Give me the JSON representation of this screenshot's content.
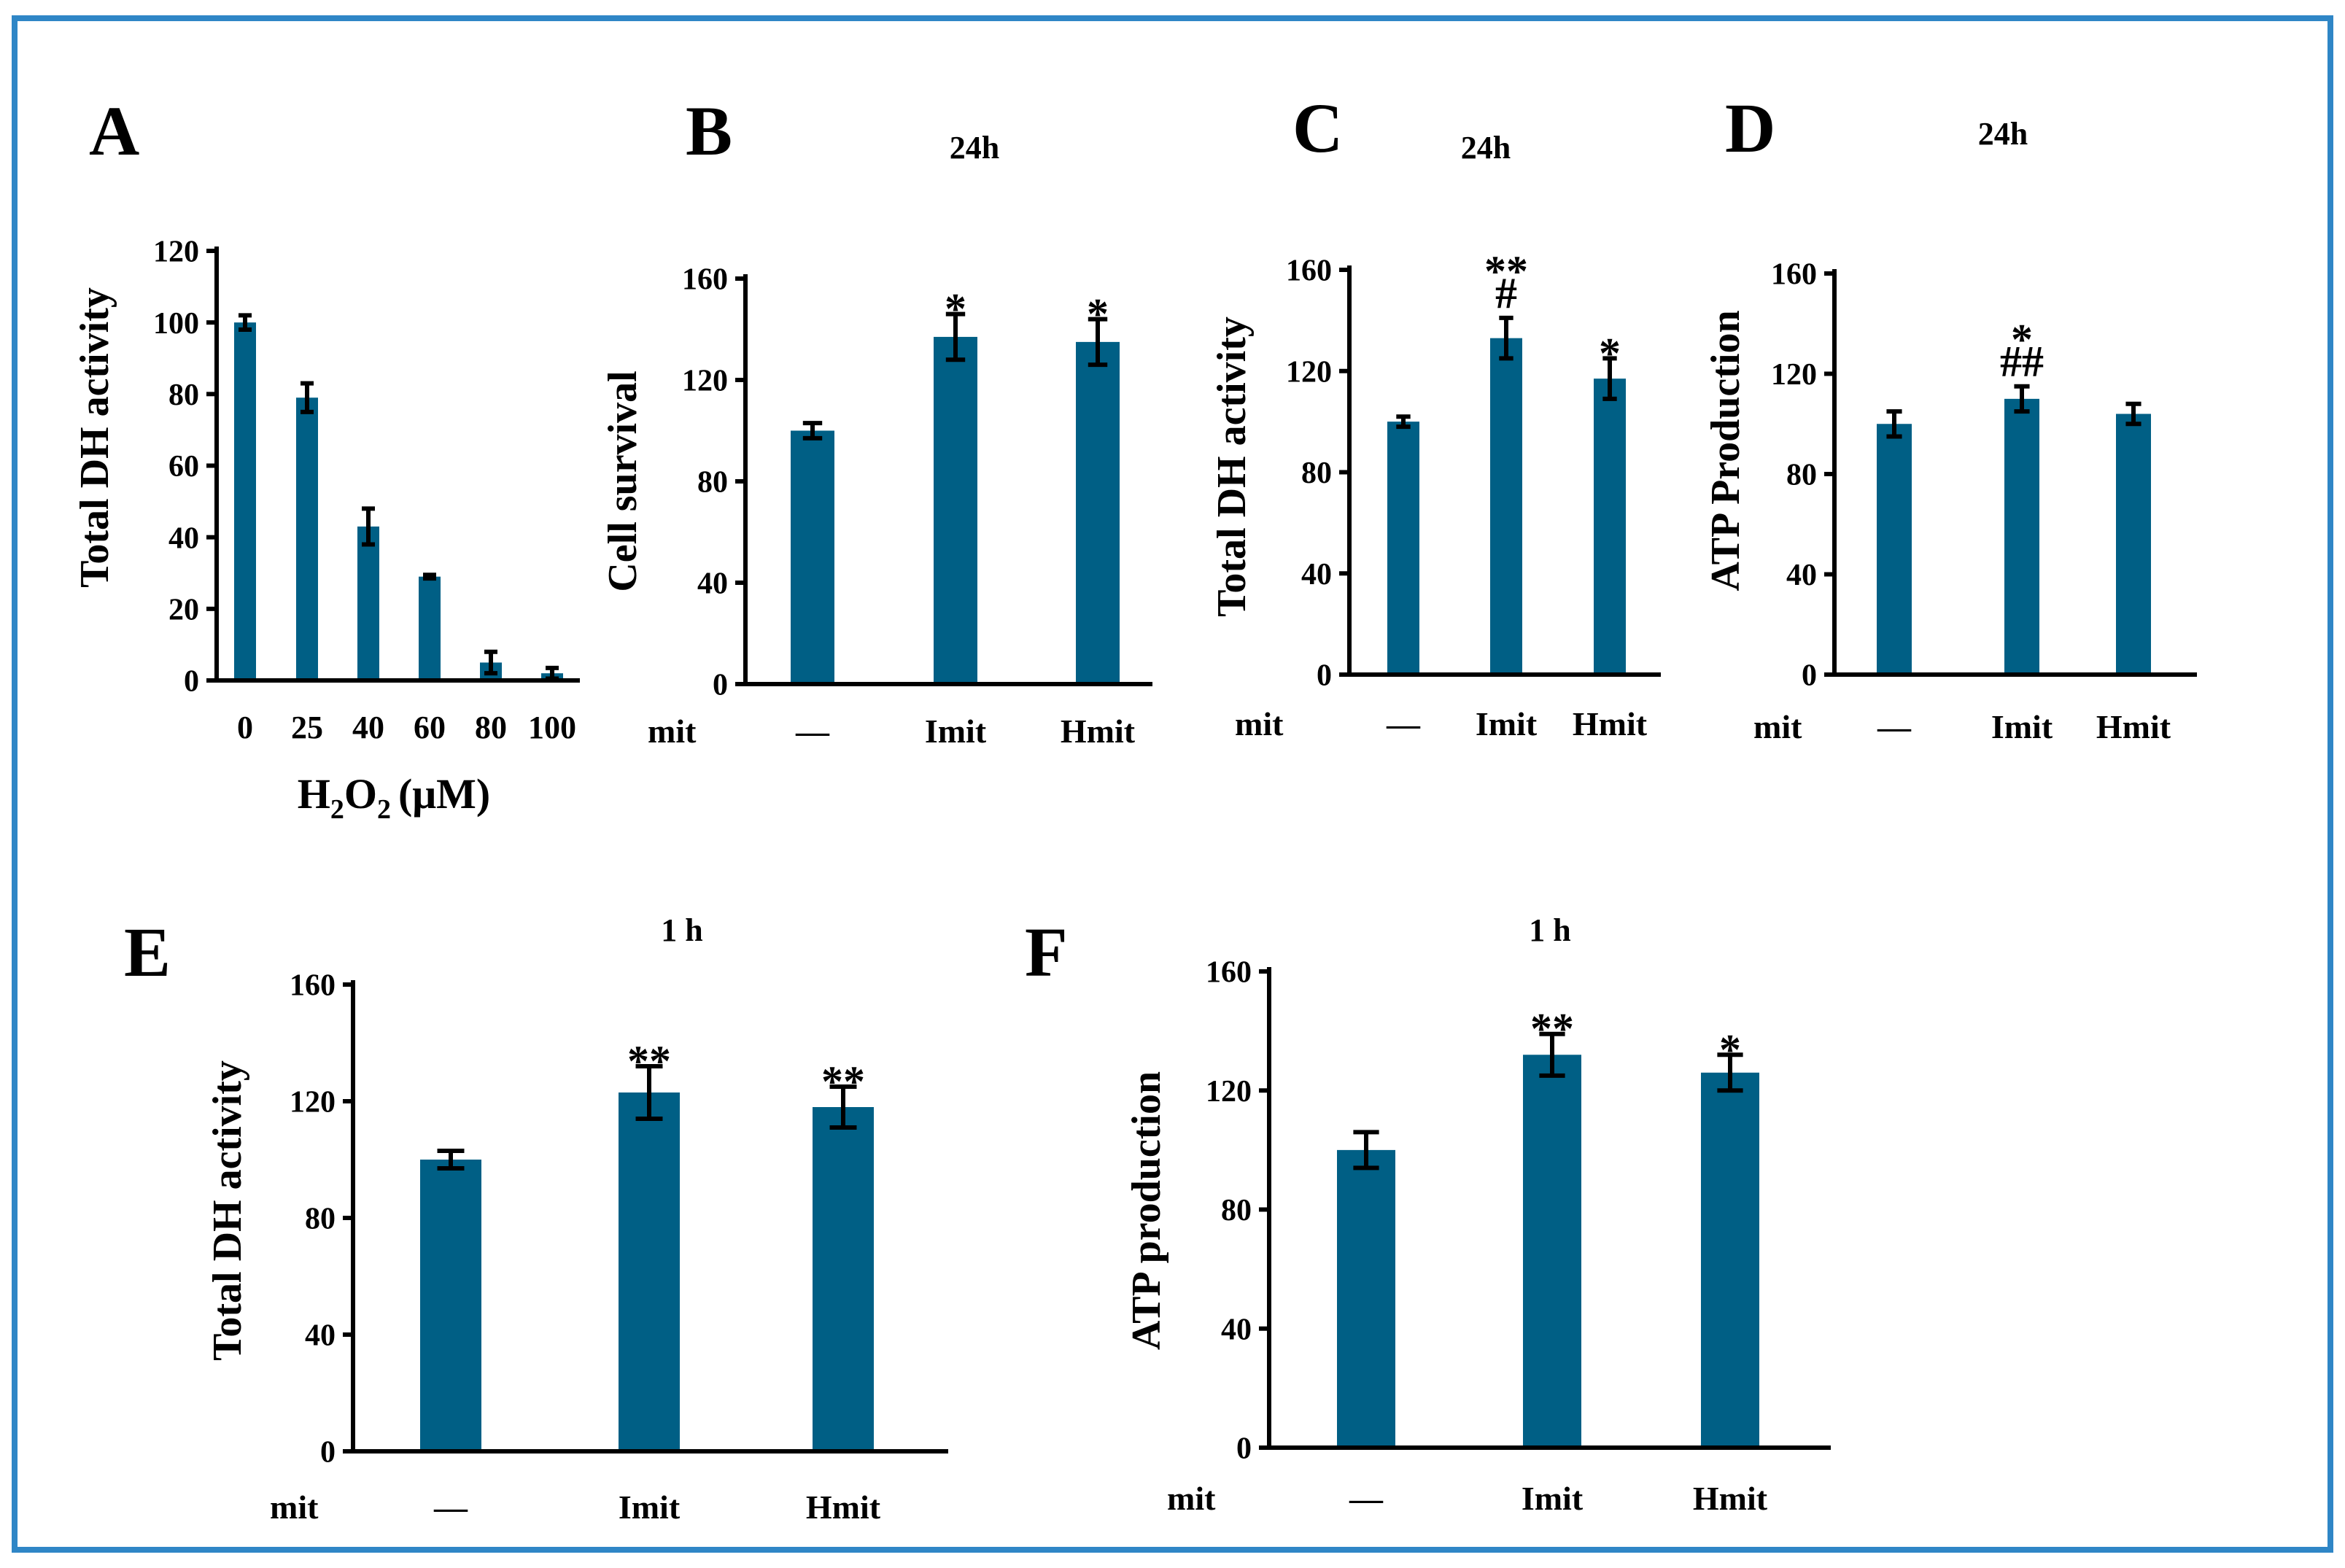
{
  "colors": {
    "bar": "#005f85",
    "axis": "#000000",
    "frame": "#2f86c6"
  },
  "chart_data": [
    {
      "type": "bar",
      "panel": "A",
      "title": "",
      "ylabel": "Total DH activity",
      "xlabel": "H2O2 (μM)",
      "xlabel_parts": {
        "main": "H",
        "sub1": "2",
        "mid": "O",
        "sub2": "2",
        "unit": "(μM)"
      },
      "group_label": "",
      "categories": [
        "0",
        "25",
        "40",
        "60",
        "80",
        "100"
      ],
      "values": [
        100,
        79,
        43,
        29,
        5,
        2
      ],
      "errors": [
        2,
        4,
        5,
        0.5,
        3,
        1.5
      ],
      "significance": [
        "",
        "",
        "",
        "",
        "",
        ""
      ],
      "ylim": [
        0,
        120
      ],
      "yticks": [
        "0",
        "20",
        "40",
        "60",
        "80",
        "100",
        "120"
      ]
    },
    {
      "type": "bar",
      "panel": "B",
      "title": "24h",
      "ylabel": "Cell survival",
      "xlabel": "",
      "group_label": "mit",
      "categories": [
        "—",
        "Imit",
        "Hmit"
      ],
      "values": [
        100,
        137,
        135
      ],
      "errors": [
        3,
        9,
        9
      ],
      "significance": [
        "",
        "*",
        "*"
      ],
      "ylim": [
        0,
        160
      ],
      "yticks": [
        "0",
        "40",
        "80",
        "120",
        "160"
      ]
    },
    {
      "type": "bar",
      "panel": "C",
      "title": "24h",
      "ylabel": "Total DH activity",
      "xlabel": "",
      "group_label": "mit",
      "categories": [
        "—",
        "Imit",
        "Hmit"
      ],
      "values": [
        100,
        133,
        117
      ],
      "errors": [
        2,
        8,
        8
      ],
      "significance": [
        "",
        "**\n#",
        "*"
      ],
      "ylim": [
        0,
        160
      ],
      "yticks": [
        "0",
        "40",
        "80",
        "120",
        "160"
      ]
    },
    {
      "type": "bar",
      "panel": "D",
      "title": "24h",
      "ylabel": "ATP Production",
      "xlabel": "",
      "group_label": "mit",
      "categories": [
        "—",
        "Imit",
        "Hmit"
      ],
      "values": [
        100,
        110,
        104
      ],
      "errors": [
        5,
        5,
        4
      ],
      "significance": [
        "",
        "*\n##",
        ""
      ],
      "ylim": [
        0,
        160
      ],
      "yticks": [
        "0",
        "40",
        "80",
        "120",
        "160"
      ]
    },
    {
      "type": "bar",
      "panel": "E",
      "title": "1 h",
      "ylabel": "Total DH activity",
      "xlabel": "",
      "group_label": "mit",
      "categories": [
        "—",
        "Imit",
        "Hmit"
      ],
      "values": [
        100,
        123,
        118
      ],
      "errors": [
        3,
        9,
        7
      ],
      "significance": [
        "",
        "**",
        "**"
      ],
      "ylim": [
        0,
        160
      ],
      "yticks": [
        "0",
        "40",
        "80",
        "120",
        "160"
      ]
    },
    {
      "type": "bar",
      "panel": "F",
      "title": "1 h",
      "ylabel": "ATP production",
      "xlabel": "",
      "group_label": "mit",
      "categories": [
        "—",
        "Imit",
        "Hmit"
      ],
      "values": [
        100,
        132,
        126
      ],
      "errors": [
        6,
        7,
        6
      ],
      "significance": [
        "",
        "**",
        "*"
      ],
      "ylim": [
        0,
        160
      ],
      "yticks": [
        "0",
        "40",
        "80",
        "120",
        "160"
      ]
    }
  ]
}
